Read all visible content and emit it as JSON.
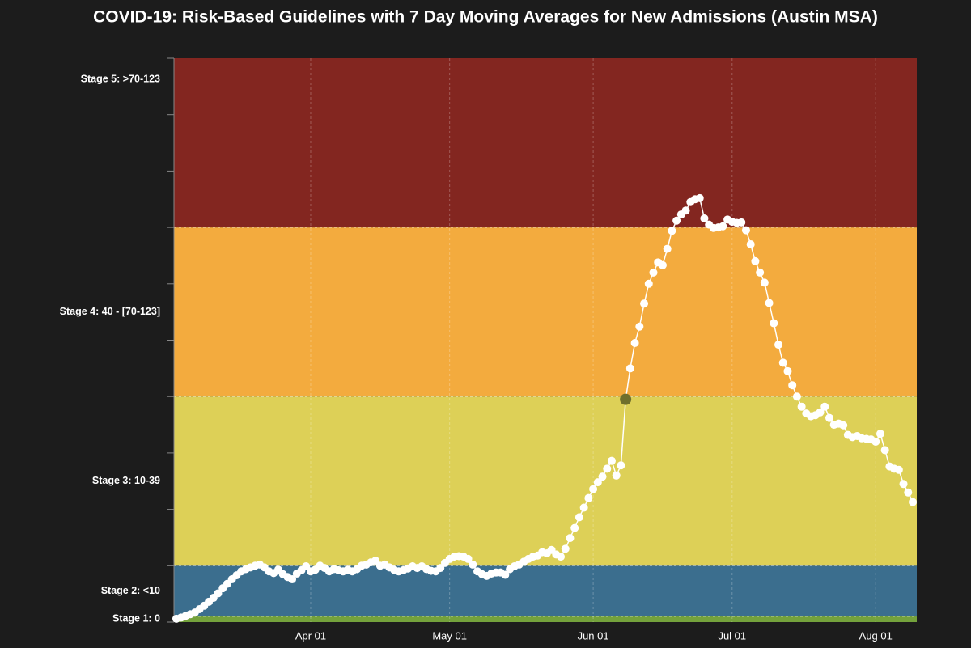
{
  "chart_data": {
    "type": "line",
    "title": "COVID-19: Risk-Based Guidelines with 7 Day Moving Averages for New Admissions (Austin MSA)",
    "x": [
      "Mar 03",
      "Mar 04",
      "Mar 05",
      "Mar 06",
      "Mar 07",
      "Mar 08",
      "Mar 09",
      "Mar 10",
      "Mar 11",
      "Mar 12",
      "Mar 13",
      "Mar 14",
      "Mar 15",
      "Mar 16",
      "Mar 17",
      "Mar 18",
      "Mar 19",
      "Mar 20",
      "Mar 21",
      "Mar 22",
      "Mar 23",
      "Mar 24",
      "Mar 25",
      "Mar 26",
      "Mar 27",
      "Mar 28",
      "Mar 29",
      "Mar 30",
      "Mar 31",
      "Apr 01",
      "Apr 02",
      "Apr 03",
      "Apr 04",
      "Apr 05",
      "Apr 06",
      "Apr 07",
      "Apr 08",
      "Apr 09",
      "Apr 10",
      "Apr 11",
      "Apr 12",
      "Apr 13",
      "Apr 14",
      "Apr 15",
      "Apr 16",
      "Apr 17",
      "Apr 18",
      "Apr 19",
      "Apr 20",
      "Apr 21",
      "Apr 22",
      "Apr 23",
      "Apr 24",
      "Apr 25",
      "Apr 26",
      "Apr 27",
      "Apr 28",
      "Apr 29",
      "Apr 30",
      "May 01",
      "May 02",
      "May 03",
      "May 04",
      "May 05",
      "May 06",
      "May 07",
      "May 08",
      "May 09",
      "May 10",
      "May 11",
      "May 12",
      "May 13",
      "May 14",
      "May 15",
      "May 16",
      "May 17",
      "May 18",
      "May 19",
      "May 20",
      "May 21",
      "May 22",
      "May 23",
      "May 24",
      "May 25",
      "May 26",
      "May 27",
      "May 28",
      "May 29",
      "May 30",
      "May 31",
      "Jun 01",
      "Jun 02",
      "Jun 03",
      "Jun 04",
      "Jun 05",
      "Jun 06",
      "Jun 07",
      "Jun 08",
      "Jun 09",
      "Jun 10",
      "Jun 11",
      "Jun 12",
      "Jun 13",
      "Jun 14",
      "Jun 15",
      "Jun 16",
      "Jun 17",
      "Jun 18",
      "Jun 19",
      "Jun 20",
      "Jun 21",
      "Jun 22",
      "Jun 23",
      "Jun 24",
      "Jun 25",
      "Jun 26",
      "Jun 27",
      "Jun 28",
      "Jun 29",
      "Jun 30",
      "Jul 01",
      "Jul 02",
      "Jul 03",
      "Jul 04",
      "Jul 05",
      "Jul 06",
      "Jul 07",
      "Jul 08",
      "Jul 09",
      "Jul 10",
      "Jul 11",
      "Jul 12",
      "Jul 13",
      "Jul 14",
      "Jul 15",
      "Jul 16",
      "Jul 17",
      "Jul 18",
      "Jul 19",
      "Jul 20",
      "Jul 21",
      "Jul 22",
      "Jul 23",
      "Jul 24",
      "Jul 25",
      "Jul 26",
      "Jul 27",
      "Jul 28",
      "Jul 29",
      "Jul 30",
      "Jul 31",
      "Aug 01",
      "Aug 02",
      "Aug 03",
      "Aug 04",
      "Aug 05",
      "Aug 06",
      "Aug 07",
      "Aug 08",
      "Aug 09"
    ],
    "values": [
      0.06,
      0.08,
      0.11,
      0.14,
      0.17,
      0.23,
      0.29,
      0.36,
      0.43,
      0.51,
      0.6,
      0.68,
      0.76,
      0.83,
      0.9,
      0.94,
      0.97,
      1.0,
      1.02,
      0.97,
      0.9,
      0.87,
      0.93,
      0.85,
      0.8,
      0.76,
      0.86,
      0.92,
      0.99,
      0.9,
      0.93,
      1.0,
      0.96,
      0.9,
      0.94,
      0.92,
      0.9,
      0.93,
      0.9,
      0.94,
      1.0,
      1.02,
      1.06,
      1.09,
      1.0,
      1.02,
      0.97,
      0.93,
      0.9,
      0.92,
      0.95,
      0.99,
      0.96,
      0.99,
      0.94,
      0.91,
      0.9,
      0.96,
      1.05,
      1.12,
      1.16,
      1.17,
      1.16,
      1.12,
      1.02,
      0.9,
      0.85,
      0.82,
      0.86,
      0.88,
      0.88,
      0.84,
      0.94,
      0.99,
      1.02,
      1.07,
      1.12,
      1.16,
      1.18,
      1.24,
      1.22,
      1.28,
      1.2,
      1.16,
      1.3,
      1.49,
      1.67,
      1.86,
      2.03,
      2.2,
      2.36,
      2.48,
      2.58,
      2.72,
      2.86,
      2.6,
      2.78,
      3.95,
      4.5,
      4.95,
      5.24,
      5.65,
      6.0,
      6.2,
      6.38,
      6.33,
      6.62,
      6.94,
      7.12,
      7.23,
      7.3,
      7.45,
      7.5,
      7.52,
      7.16,
      7.05,
      6.99,
      7.0,
      7.02,
      7.14,
      7.1,
      7.08,
      7.09,
      6.95,
      6.7,
      6.4,
      6.2,
      6.02,
      5.66,
      5.3,
      4.92,
      4.6,
      4.45,
      4.2,
      4.0,
      3.82,
      3.7,
      3.65,
      3.67,
      3.72,
      3.82,
      3.62,
      3.5,
      3.52,
      3.49,
      3.32,
      3.28,
      3.3,
      3.26,
      3.25,
      3.24,
      3.2,
      3.34,
      3.05,
      2.76,
      2.72,
      2.7,
      2.45,
      2.3,
      2.13
    ],
    "color": "#ffffff",
    "highlight": {
      "x": "Jun 08",
      "color": "#6f6f2c"
    },
    "xticks": [
      "Apr 01",
      "May 01",
      "Jun 01",
      "Jul 01",
      "Aug 01"
    ],
    "ylim": [
      0,
      10
    ],
    "yticks": [
      0,
      1,
      2,
      3,
      4,
      5,
      6,
      7,
      8,
      9,
      10
    ],
    "grid": true,
    "bands": [
      {
        "label": "Stage 1: 0",
        "from": 0,
        "to": 0.1,
        "color": "#74a23c"
      },
      {
        "label": "Stage 2: <10",
        "from": 0.1,
        "to": 1,
        "color": "#3b6e8e"
      },
      {
        "label": "Stage 3: 10-39",
        "from": 1,
        "to": 4,
        "color": "#ddd057"
      },
      {
        "label": "Stage 4: 40 - [70-123]",
        "from": 4,
        "to": 7,
        "color": "#f3ab3e"
      },
      {
        "label": "Stage 5: >70-123",
        "from": 7,
        "to": 10,
        "color": "#832620"
      }
    ]
  }
}
